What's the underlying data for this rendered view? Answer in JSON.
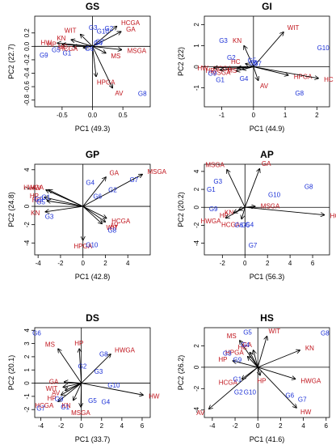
{
  "colors": {
    "genotype": "#1a2fd6",
    "variable": "#c0141c",
    "axes": "#000000"
  },
  "chart_data": [
    {
      "type": "scatter",
      "title": "GS",
      "xlabel": "PC1 (49.3)",
      "ylabel": "PC2 (22.7)",
      "xlim": [
        -0.95,
        0.95
      ],
      "ylim": [
        -0.9,
        0.45
      ],
      "xticks": [
        -0.5,
        0.0,
        0.5
      ],
      "yticks": [
        -0.8,
        -0.6,
        -0.4,
        -0.2,
        0.0,
        0.2
      ],
      "xtick_labels": [
        "-0.5",
        "0.0",
        "0.5"
      ],
      "ytick_labels": [
        "-0.8",
        "-0.6",
        "-0.4",
        "-0.2",
        "0.0",
        "0.2"
      ],
      "genotypes": [
        {
          "label": "G1",
          "x": -0.42,
          "y": -0.1
        },
        {
          "label": "G2",
          "x": 0.27,
          "y": 0.27
        },
        {
          "label": "G3",
          "x": 0.01,
          "y": 0.28
        },
        {
          "label": "G4",
          "x": 0.09,
          "y": 0.05
        },
        {
          "label": "G5",
          "x": -0.6,
          "y": -0.05
        },
        {
          "label": "G6",
          "x": -0.05,
          "y": -0.03
        },
        {
          "label": "G7",
          "x": 0.12,
          "y": 0.07
        },
        {
          "label": "G8",
          "x": 0.82,
          "y": -0.7
        },
        {
          "label": "G9",
          "x": -0.8,
          "y": -0.13
        },
        {
          "label": "G10",
          "x": 0.17,
          "y": 0.23
        }
      ],
      "variables": [
        {
          "label": "HCGA",
          "x": 0.4,
          "y": 0.3
        },
        {
          "label": "GA",
          "x": 0.47,
          "y": 0.22
        },
        {
          "label": "WIT",
          "x": -0.2,
          "y": 0.18
        },
        {
          "label": "KN",
          "x": -0.35,
          "y": 0.1
        },
        {
          "label": "HW",
          "x": -0.58,
          "y": 0.05
        },
        {
          "label": "HP",
          "x": -0.5,
          "y": 0.03
        },
        {
          "label": "HC",
          "x": -0.32,
          "y": 0.0
        },
        {
          "label": "HCGA",
          "x": -0.15,
          "y": -0.02
        },
        {
          "label": "MSGA",
          "x": 0.48,
          "y": -0.05
        },
        {
          "label": "MS",
          "x": 0.22,
          "y": -0.1
        },
        {
          "label": "HPGA",
          "x": 0.06,
          "y": -0.45
        },
        {
          "label": "AV",
          "x": 0.33,
          "y": -0.62
        }
      ]
    },
    {
      "type": "scatter",
      "title": "GI",
      "xlabel": "PC1 (44.9)",
      "ylabel": "PC2 (22)",
      "xlim": [
        -1.55,
        2.4
      ],
      "ylim": [
        -1.9,
        2.4
      ],
      "xticks": [
        -1,
        0,
        1,
        2
      ],
      "yticks": [
        -1,
        0,
        1,
        2
      ],
      "xtick_labels": [
        "-1",
        "0",
        "1",
        "2"
      ],
      "ytick_labels": [
        "-1",
        "0",
        "1",
        "2"
      ],
      "genotypes": [
        {
          "label": "G1",
          "x": -1.05,
          "y": -0.62
        },
        {
          "label": "G2",
          "x": -0.7,
          "y": 0.45
        },
        {
          "label": "G3",
          "x": -0.95,
          "y": 1.25
        },
        {
          "label": "G4",
          "x": -0.3,
          "y": -0.55
        },
        {
          "label": "G5",
          "x": -0.05,
          "y": 0.3
        },
        {
          "label": "G6",
          "x": 0.0,
          "y": 0.2
        },
        {
          "label": "G7",
          "x": 0.12,
          "y": 0.15
        },
        {
          "label": "G8",
          "x": 1.45,
          "y": -1.25
        },
        {
          "label": "G9",
          "x": -1.3,
          "y": -0.3
        },
        {
          "label": "G10",
          "x": 2.2,
          "y": 0.9
        }
      ],
      "variables": [
        {
          "label": "WIT",
          "x": 0.95,
          "y": 1.65
        },
        {
          "label": "KN",
          "x": -0.3,
          "y": 1.0
        },
        {
          "label": "HC",
          "x": -0.25,
          "y": 0.15
        },
        {
          "label": "HCGA",
          "x": -0.5,
          "y": -0.05
        },
        {
          "label": "HW",
          "x": -1.25,
          "y": -0.05
        },
        {
          "label": "HP",
          "x": -1.05,
          "y": -0.15
        },
        {
          "label": "MSGA",
          "x": -0.55,
          "y": -0.2
        },
        {
          "label": "MS",
          "x": -0.35,
          "y": -0.12
        },
        {
          "label": "AV",
          "x": 0.15,
          "y": -0.65
        },
        {
          "label": "HPGA",
          "x": 1.1,
          "y": -0.4
        },
        {
          "label": "HC",
          "x": 2.05,
          "y": -0.55
        }
      ]
    },
    {
      "type": "scatter",
      "title": "GP",
      "xlabel": "PC1 (42.8)",
      "ylabel": "PC2 (24.8)",
      "xlim": [
        -4.3,
        6.0
      ],
      "ylim": [
        -5.3,
        4.6
      ],
      "xticks": [
        -4,
        -2,
        0,
        2,
        4
      ],
      "yticks": [
        -4,
        -2,
        0,
        2,
        4
      ],
      "xtick_labels": [
        "-4",
        "-2",
        "0",
        "2",
        "4"
      ],
      "ytick_labels": [
        "-4",
        "-2",
        "0",
        "2",
        "4"
      ],
      "genotypes": [
        {
          "label": "G1",
          "x": -3.3,
          "y": 1.0
        },
        {
          "label": "G2",
          "x": 2.65,
          "y": 1.8
        },
        {
          "label": "G3",
          "x": -3.0,
          "y": -1.1
        },
        {
          "label": "G4",
          "x": 0.65,
          "y": 2.6
        },
        {
          "label": "G5",
          "x": -3.75,
          "y": 0.5
        },
        {
          "label": "G6",
          "x": 1.3,
          "y": 1.1
        },
        {
          "label": "G7",
          "x": 4.55,
          "y": 2.9
        },
        {
          "label": "G8",
          "x": 2.6,
          "y": -2.6
        },
        {
          "label": "G9",
          "x": -3.95,
          "y": 0.8
        },
        {
          "label": "G10",
          "x": 0.8,
          "y": -4.2
        }
      ],
      "variables": [
        {
          "label": "MSGA",
          "x": 5.3,
          "y": 3.5
        },
        {
          "label": "GA",
          "x": 2.05,
          "y": 3.2
        },
        {
          "label": "HWGA",
          "x": -3.05,
          "y": 1.8
        },
        {
          "label": "HW",
          "x": -3.3,
          "y": 1.8
        },
        {
          "label": "HP",
          "x": -3.45,
          "y": 1.0
        },
        {
          "label": "HC",
          "x": -3.2,
          "y": 0.6
        },
        {
          "label": "KN",
          "x": -3.35,
          "y": -0.6
        },
        {
          "label": "HCGA",
          "x": 2.1,
          "y": -1.3
        },
        {
          "label": "AV",
          "x": 2.0,
          "y": -1.7
        },
        {
          "label": "WIT",
          "x": 1.7,
          "y": -1.9
        },
        {
          "label": "HPGA",
          "x": 0.0,
          "y": -3.7
        }
      ]
    },
    {
      "type": "scatter",
      "title": "AP",
      "xlabel": "PC1 (56.3)",
      "ylabel": "PC2 (20.2)",
      "xlim": [
        -3.6,
        7.5
      ],
      "ylim": [
        -5.3,
        4.8
      ],
      "xticks": [
        -2,
        0,
        2,
        4,
        6
      ],
      "yticks": [
        -4,
        -2,
        0,
        2,
        4
      ],
      "xtick_labels": [
        "-2",
        "0",
        "2",
        "4",
        "6"
      ],
      "ytick_labels": [
        "-4",
        "-2",
        "0",
        "2",
        "4"
      ],
      "genotypes": [
        {
          "label": "G1",
          "x": -3.0,
          "y": 2.0
        },
        {
          "label": "G3",
          "x": -2.4,
          "y": 2.9
        },
        {
          "label": "G4",
          "x": 0.4,
          "y": -1.9
        },
        {
          "label": "G5",
          "x": 0.05,
          "y": -1.95
        },
        {
          "label": "G6",
          "x": -0.55,
          "y": -1.95
        },
        {
          "label": "G7",
          "x": 0.7,
          "y": -4.2
        },
        {
          "label": "G8",
          "x": 5.65,
          "y": 2.3
        },
        {
          "label": "G9",
          "x": -2.8,
          "y": -0.15
        },
        {
          "label": "G10",
          "x": 2.6,
          "y": 1.4
        }
      ],
      "variables": [
        {
          "label": "MSGA",
          "x": -1.6,
          "y": 4.2
        },
        {
          "label": "GA",
          "x": 1.3,
          "y": 4.3
        },
        {
          "label": "HC",
          "x": 7.05,
          "y": -0.85
        },
        {
          "label": "MSGA",
          "x": 0.9,
          "y": 0.1
        },
        {
          "label": "KN",
          "x": -0.55,
          "y": -0.3
        },
        {
          "label": "HP",
          "x": -1.0,
          "y": -0.6
        },
        {
          "label": "HWGA",
          "x": -1.7,
          "y": -1.2
        },
        {
          "label": "HCGA",
          "x": -0.3,
          "y": -1.3
        }
      ]
    },
    {
      "type": "scatter",
      "title": "DS",
      "xlabel": "PC1 (33.7)",
      "ylabel": "PC2 (20.1)",
      "xlim": [
        -4.6,
        6.8
      ],
      "ylim": [
        -2.6,
        4.2
      ],
      "xticks": [
        -4,
        -2,
        0,
        2,
        4,
        6
      ],
      "yticks": [
        -2,
        -1,
        0,
        1,
        2,
        3,
        4
      ],
      "xtick_labels": [
        "-4",
        "-2",
        "0",
        "2",
        "4",
        "6"
      ],
      "ytick_labels": [
        "-2",
        "-1",
        "0",
        "1",
        "2",
        "3",
        "4"
      ],
      "genotypes": [
        {
          "label": "G1",
          "x": -1.6,
          "y": -1.8
        },
        {
          "label": "G2",
          "x": 0.1,
          "y": 1.3
        },
        {
          "label": "G3",
          "x": 1.7,
          "y": 0.9
        },
        {
          "label": "G4",
          "x": 2.4,
          "y": -1.4
        },
        {
          "label": "G5",
          "x": 1.1,
          "y": -1.3
        },
        {
          "label": "G6",
          "x": -4.4,
          "y": 3.8
        },
        {
          "label": "G7",
          "x": -4.0,
          "y": -1.9
        },
        {
          "label": "G8",
          "x": 2.2,
          "y": 2.2
        },
        {
          "label": "G9",
          "x": -2.2,
          "y": -1.2
        },
        {
          "label": "G10",
          "x": 3.2,
          "y": -0.15
        }
      ],
      "variables": [
        {
          "label": "MS",
          "x": -2.3,
          "y": 2.6
        },
        {
          "label": "HP",
          "x": -0.2,
          "y": 2.6
        },
        {
          "label": "HWGA",
          "x": 2.9,
          "y": 2.2
        },
        {
          "label": "HW",
          "x": 6.1,
          "y": -0.9
        },
        {
          "label": "GA",
          "x": -1.7,
          "y": 0.1
        },
        {
          "label": "WIT",
          "x": -1.8,
          "y": -0.3
        },
        {
          "label": "AV",
          "x": -1.6,
          "y": -0.55
        },
        {
          "label": "HP",
          "x": -2.0,
          "y": -0.9
        },
        {
          "label": "HCGA",
          "x": -2.3,
          "y": -1.4
        },
        {
          "label": "KN",
          "x": -0.8,
          "y": -1.3
        },
        {
          "label": "MSGA",
          "x": -0.05,
          "y": -1.8
        }
      ]
    },
    {
      "type": "scatter",
      "title": "HS",
      "xlabel": "PC1 (41.6)",
      "ylabel": "PC2 (26.2)",
      "xlim": [
        -4.7,
        6.3
      ],
      "ylim": [
        -4.7,
        3.7
      ],
      "xticks": [
        -4,
        -2,
        0,
        2,
        4,
        6
      ],
      "yticks": [
        -4,
        -2,
        0,
        2
      ],
      "xtick_labels": [
        "-4",
        "-2",
        "0",
        "2",
        "4",
        "6"
      ],
      "ytick_labels": [
        "-4",
        "-2",
        "0",
        "2"
      ],
      "genotypes": [
        {
          "label": "G1",
          "x": -1.8,
          "y": -1.1
        },
        {
          "label": "G2",
          "x": -1.7,
          "y": -2.3
        },
        {
          "label": "G3",
          "x": -2.7,
          "y": 1.3
        },
        {
          "label": "G4",
          "x": -1.1,
          "y": 2.1
        },
        {
          "label": "G5",
          "x": -0.9,
          "y": 3.3
        },
        {
          "label": "G6",
          "x": 2.8,
          "y": -2.6
        },
        {
          "label": "G7",
          "x": 3.9,
          "y": -3.0
        },
        {
          "label": "G8",
          "x": 5.9,
          "y": 3.2
        },
        {
          "label": "G9",
          "x": -1.8,
          "y": 0.7
        },
        {
          "label": "G10",
          "x": -0.7,
          "y": -2.3
        }
      ],
      "variables": [
        {
          "label": "WIT",
          "x": 0.8,
          "y": 2.9
        },
        {
          "label": "KN",
          "x": 3.7,
          "y": 1.6
        },
        {
          "label": "MS",
          "x": -1.6,
          "y": 2.5
        },
        {
          "label": "GA",
          "x": -0.4,
          "y": 1.6
        },
        {
          "label": "HC",
          "x": -0.7,
          "y": 1.4
        },
        {
          "label": "HPGA",
          "x": -0.9,
          "y": 1.0
        },
        {
          "label": "HP",
          "x": -2.2,
          "y": 0.6
        },
        {
          "label": "HWGA",
          "x": 3.3,
          "y": -1.1
        },
        {
          "label": "HW",
          "x": 3.4,
          "y": -3.8
        },
        {
          "label": "HP",
          "x": 0.2,
          "y": -0.75
        },
        {
          "label": "HCGA",
          "x": -1.4,
          "y": -1.1
        },
        {
          "label": "AV",
          "x": -4.3,
          "y": -3.9
        }
      ]
    }
  ]
}
